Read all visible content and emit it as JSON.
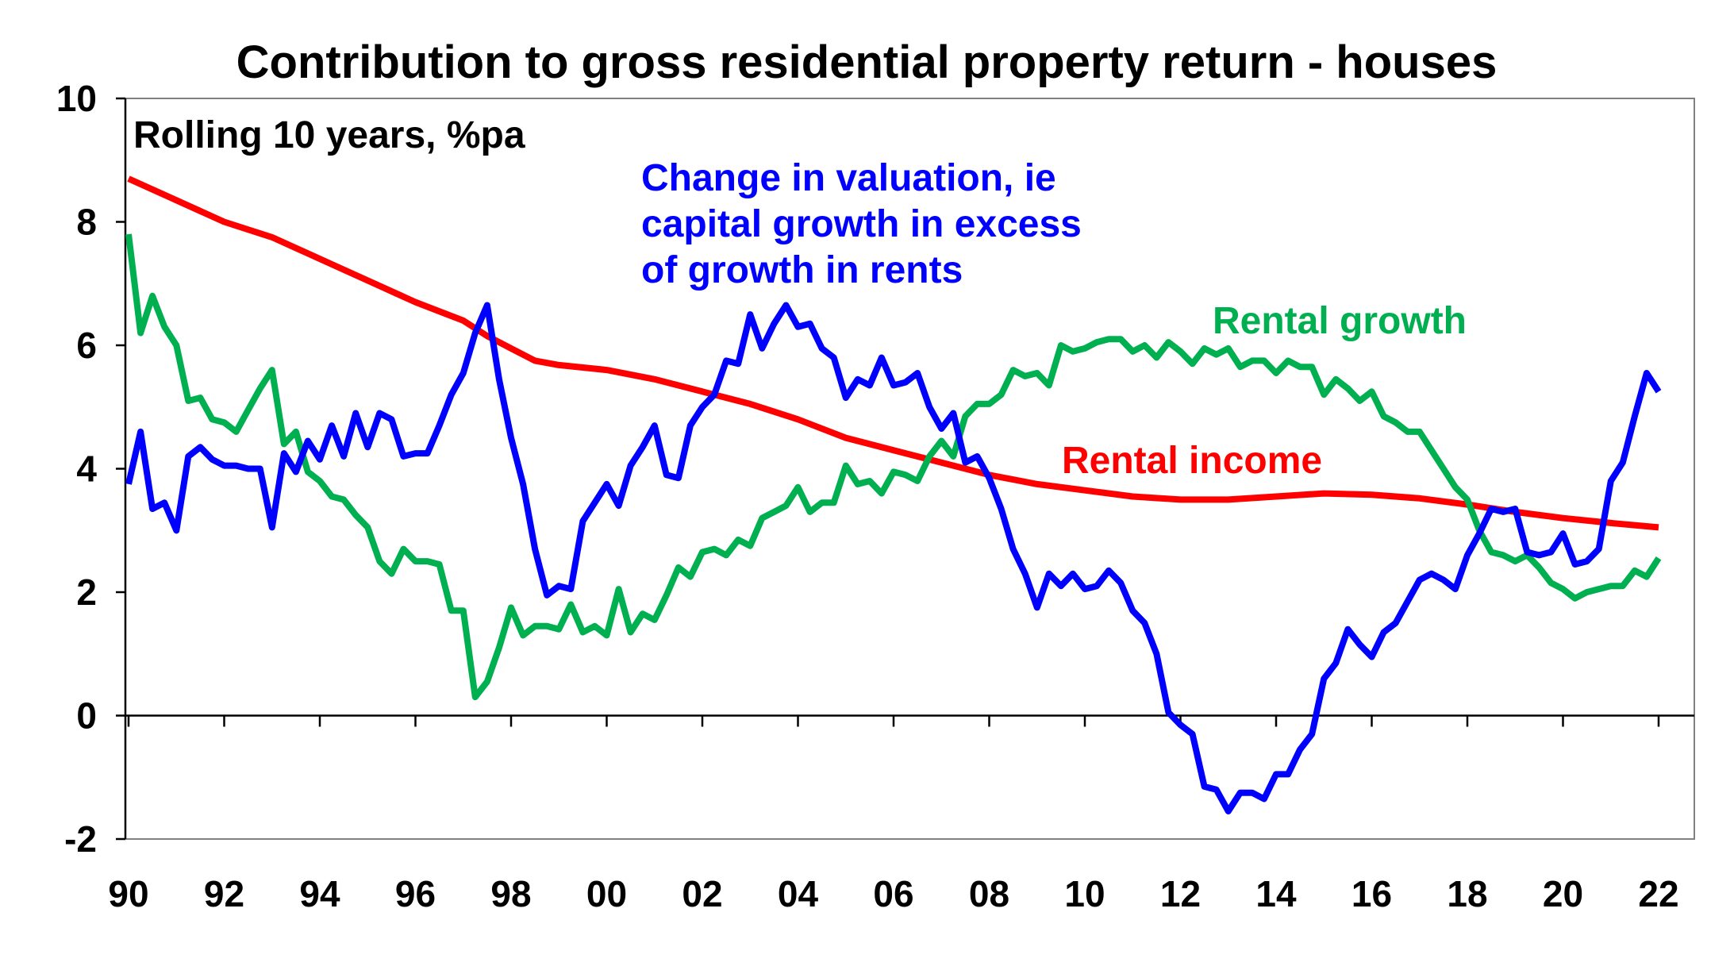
{
  "chart_data": {
    "type": "line",
    "title": "Contribution to gross residential property return - houses",
    "subtitle": "Rolling 10 years, %pa",
    "xlabel": "",
    "ylabel": "",
    "xlim": [
      1990,
      2022.3
    ],
    "ylim": [
      -2,
      10
    ],
    "y_ticks": [
      -2,
      0,
      2,
      4,
      6,
      8,
      10
    ],
    "x_ticks": [
      1990,
      1992,
      1994,
      1996,
      1998,
      2000,
      2002,
      2004,
      2006,
      2008,
      2010,
      2012,
      2014,
      2016,
      2018,
      2020,
      2022
    ],
    "x_tick_labels": [
      "90",
      "92",
      "94",
      "96",
      "98",
      "00",
      "02",
      "04",
      "06",
      "08",
      "10",
      "12",
      "14",
      "16",
      "18",
      "20",
      "22"
    ],
    "grid": false,
    "series": [
      {
        "name": "Rental income",
        "label": "Rental income",
        "color": "#ff0000",
        "points": [
          [
            1990,
            8.7
          ],
          [
            1991,
            8.35
          ],
          [
            1992,
            8.0
          ],
          [
            1993,
            7.75
          ],
          [
            1994,
            7.4
          ],
          [
            1995,
            7.05
          ],
          [
            1996,
            6.7
          ],
          [
            1997,
            6.4
          ],
          [
            1997.5,
            6.15
          ],
          [
            1998,
            5.95
          ],
          [
            1998.5,
            5.75
          ],
          [
            1999,
            5.68
          ],
          [
            2000,
            5.6
          ],
          [
            2001,
            5.45
          ],
          [
            2002,
            5.25
          ],
          [
            2003,
            5.05
          ],
          [
            2004,
            4.8
          ],
          [
            2005,
            4.5
          ],
          [
            2006,
            4.3
          ],
          [
            2007,
            4.1
          ],
          [
            2008,
            3.9
          ],
          [
            2009,
            3.75
          ],
          [
            2010,
            3.65
          ],
          [
            2011,
            3.55
          ],
          [
            2012,
            3.5
          ],
          [
            2013,
            3.5
          ],
          [
            2014,
            3.55
          ],
          [
            2015,
            3.6
          ],
          [
            2016,
            3.58
          ],
          [
            2017,
            3.52
          ],
          [
            2018,
            3.42
          ],
          [
            2019,
            3.3
          ],
          [
            2020,
            3.2
          ],
          [
            2021,
            3.12
          ],
          [
            2022,
            3.05
          ]
        ]
      },
      {
        "name": "Rental growth",
        "label": "Rental growth",
        "color": "#00b050",
        "points": [
          [
            1990,
            7.8
          ],
          [
            1990.25,
            6.2
          ],
          [
            1990.5,
            6.8
          ],
          [
            1990.75,
            6.3
          ],
          [
            1991,
            6.0
          ],
          [
            1991.25,
            5.1
          ],
          [
            1991.5,
            5.15
          ],
          [
            1991.75,
            4.8
          ],
          [
            1992,
            4.75
          ],
          [
            1992.25,
            4.6
          ],
          [
            1992.5,
            4.95
          ],
          [
            1992.75,
            5.3
          ],
          [
            1993,
            5.6
          ],
          [
            1993.25,
            4.4
          ],
          [
            1993.5,
            4.6
          ],
          [
            1993.75,
            3.95
          ],
          [
            1994,
            3.8
          ],
          [
            1994.25,
            3.55
          ],
          [
            1994.5,
            3.5
          ],
          [
            1994.75,
            3.25
          ],
          [
            1995,
            3.05
          ],
          [
            1995.25,
            2.5
          ],
          [
            1995.5,
            2.3
          ],
          [
            1995.75,
            2.7
          ],
          [
            1996,
            2.5
          ],
          [
            1996.25,
            2.5
          ],
          [
            1996.5,
            2.45
          ],
          [
            1996.75,
            1.7
          ],
          [
            1997,
            1.7
          ],
          [
            1997.25,
            0.3
          ],
          [
            1997.5,
            0.55
          ],
          [
            1997.75,
            1.1
          ],
          [
            1998,
            1.75
          ],
          [
            1998.25,
            1.3
          ],
          [
            1998.5,
            1.45
          ],
          [
            1998.75,
            1.45
          ],
          [
            1999,
            1.4
          ],
          [
            1999.25,
            1.8
          ],
          [
            1999.5,
            1.35
          ],
          [
            1999.75,
            1.45
          ],
          [
            2000,
            1.3
          ],
          [
            2000.25,
            2.05
          ],
          [
            2000.5,
            1.35
          ],
          [
            2000.75,
            1.65
          ],
          [
            2001,
            1.55
          ],
          [
            2001.25,
            1.95
          ],
          [
            2001.5,
            2.4
          ],
          [
            2001.75,
            2.25
          ],
          [
            2002,
            2.65
          ],
          [
            2002.25,
            2.7
          ],
          [
            2002.5,
            2.6
          ],
          [
            2002.75,
            2.85
          ],
          [
            2003,
            2.75
          ],
          [
            2003.25,
            3.2
          ],
          [
            2003.5,
            3.3
          ],
          [
            2003.75,
            3.4
          ],
          [
            2004,
            3.7
          ],
          [
            2004.25,
            3.3
          ],
          [
            2004.5,
            3.45
          ],
          [
            2004.75,
            3.45
          ],
          [
            2005,
            4.05
          ],
          [
            2005.25,
            3.75
          ],
          [
            2005.5,
            3.8
          ],
          [
            2005.75,
            3.6
          ],
          [
            2006,
            3.95
          ],
          [
            2006.25,
            3.9
          ],
          [
            2006.5,
            3.8
          ],
          [
            2006.75,
            4.2
          ],
          [
            2007,
            4.45
          ],
          [
            2007.25,
            4.2
          ],
          [
            2007.5,
            4.85
          ],
          [
            2007.75,
            5.05
          ],
          [
            2008,
            5.05
          ],
          [
            2008.25,
            5.2
          ],
          [
            2008.5,
            5.6
          ],
          [
            2008.75,
            5.5
          ],
          [
            2009,
            5.55
          ],
          [
            2009.25,
            5.35
          ],
          [
            2009.5,
            6.0
          ],
          [
            2009.75,
            5.9
          ],
          [
            2010,
            5.95
          ],
          [
            2010.25,
            6.05
          ],
          [
            2010.5,
            6.1
          ],
          [
            2010.75,
            6.1
          ],
          [
            2011,
            5.9
          ],
          [
            2011.25,
            6.0
          ],
          [
            2011.5,
            5.8
          ],
          [
            2011.75,
            6.05
          ],
          [
            2012,
            5.9
          ],
          [
            2012.25,
            5.7
          ],
          [
            2012.5,
            5.95
          ],
          [
            2012.75,
            5.85
          ],
          [
            2013,
            5.95
          ],
          [
            2013.25,
            5.65
          ],
          [
            2013.5,
            5.75
          ],
          [
            2013.75,
            5.75
          ],
          [
            2014,
            5.55
          ],
          [
            2014.25,
            5.75
          ],
          [
            2014.5,
            5.65
          ],
          [
            2014.75,
            5.65
          ],
          [
            2015,
            5.2
          ],
          [
            2015.25,
            5.45
          ],
          [
            2015.5,
            5.3
          ],
          [
            2015.75,
            5.1
          ],
          [
            2016,
            5.25
          ],
          [
            2016.25,
            4.85
          ],
          [
            2016.5,
            4.75
          ],
          [
            2016.75,
            4.6
          ],
          [
            2017,
            4.6
          ],
          [
            2017.25,
            4.3
          ],
          [
            2017.5,
            4.0
          ],
          [
            2017.75,
            3.7
          ],
          [
            2018,
            3.5
          ],
          [
            2018.25,
            3.0
          ],
          [
            2018.5,
            2.65
          ],
          [
            2018.75,
            2.6
          ],
          [
            2019,
            2.5
          ],
          [
            2019.25,
            2.6
          ],
          [
            2019.5,
            2.4
          ],
          [
            2019.75,
            2.15
          ],
          [
            2020,
            2.05
          ],
          [
            2020.25,
            1.9
          ],
          [
            2020.5,
            2.0
          ],
          [
            2020.75,
            2.05
          ],
          [
            2021,
            2.1
          ],
          [
            2021.25,
            2.1
          ],
          [
            2021.5,
            2.35
          ],
          [
            2021.75,
            2.25
          ],
          [
            2022,
            2.55
          ]
        ]
      },
      {
        "name": "Change in valuation",
        "label": [
          "Change in valuation, ie",
          "capital growth in excess",
          "of growth in rents"
        ],
        "color": "#0000ff",
        "points": [
          [
            1990,
            3.75
          ],
          [
            1990.25,
            4.6
          ],
          [
            1990.5,
            3.35
          ],
          [
            1990.75,
            3.45
          ],
          [
            1991,
            3.0
          ],
          [
            1991.25,
            4.2
          ],
          [
            1991.5,
            4.35
          ],
          [
            1991.75,
            4.15
          ],
          [
            1992,
            4.05
          ],
          [
            1992.25,
            4.05
          ],
          [
            1992.5,
            4.0
          ],
          [
            1992.75,
            4.0
          ],
          [
            1993,
            3.05
          ],
          [
            1993.25,
            4.25
          ],
          [
            1993.5,
            3.95
          ],
          [
            1993.75,
            4.45
          ],
          [
            1994,
            4.15
          ],
          [
            1994.25,
            4.7
          ],
          [
            1994.5,
            4.2
          ],
          [
            1994.75,
            4.9
          ],
          [
            1995,
            4.35
          ],
          [
            1995.25,
            4.9
          ],
          [
            1995.5,
            4.8
          ],
          [
            1995.75,
            4.2
          ],
          [
            1996,
            4.25
          ],
          [
            1996.25,
            4.25
          ],
          [
            1996.5,
            4.7
          ],
          [
            1996.75,
            5.2
          ],
          [
            1997,
            5.55
          ],
          [
            1997.25,
            6.2
          ],
          [
            1997.5,
            6.65
          ],
          [
            1997.75,
            5.45
          ],
          [
            1998,
            4.5
          ],
          [
            1998.25,
            3.75
          ],
          [
            1998.5,
            2.7
          ],
          [
            1998.75,
            1.95
          ],
          [
            1999,
            2.1
          ],
          [
            1999.25,
            2.05
          ],
          [
            1999.5,
            3.15
          ],
          [
            1999.75,
            3.45
          ],
          [
            2000,
            3.75
          ],
          [
            2000.25,
            3.4
          ],
          [
            2000.5,
            4.05
          ],
          [
            2000.75,
            4.35
          ],
          [
            2001,
            4.7
          ],
          [
            2001.25,
            3.9
          ],
          [
            2001.5,
            3.85
          ],
          [
            2001.75,
            4.7
          ],
          [
            2002,
            5.0
          ],
          [
            2002.25,
            5.2
          ],
          [
            2002.5,
            5.75
          ],
          [
            2002.75,
            5.7
          ],
          [
            2003,
            6.5
          ],
          [
            2003.25,
            5.95
          ],
          [
            2003.5,
            6.35
          ],
          [
            2003.75,
            6.65
          ],
          [
            2004,
            6.3
          ],
          [
            2004.25,
            6.35
          ],
          [
            2004.5,
            5.95
          ],
          [
            2004.75,
            5.8
          ],
          [
            2005,
            5.15
          ],
          [
            2005.25,
            5.45
          ],
          [
            2005.5,
            5.35
          ],
          [
            2005.75,
            5.8
          ],
          [
            2006,
            5.35
          ],
          [
            2006.25,
            5.4
          ],
          [
            2006.5,
            5.55
          ],
          [
            2006.75,
            5.0
          ],
          [
            2007,
            4.65
          ],
          [
            2007.25,
            4.9
          ],
          [
            2007.5,
            4.1
          ],
          [
            2007.75,
            4.2
          ],
          [
            2008,
            3.85
          ],
          [
            2008.25,
            3.35
          ],
          [
            2008.5,
            2.7
          ],
          [
            2008.75,
            2.3
          ],
          [
            2009,
            1.75
          ],
          [
            2009.25,
            2.3
          ],
          [
            2009.5,
            2.1
          ],
          [
            2009.75,
            2.3
          ],
          [
            2010,
            2.05
          ],
          [
            2010.25,
            2.1
          ],
          [
            2010.5,
            2.35
          ],
          [
            2010.75,
            2.15
          ],
          [
            2011,
            1.7
          ],
          [
            2011.25,
            1.5
          ],
          [
            2011.5,
            1.0
          ],
          [
            2011.75,
            0.05
          ],
          [
            2012,
            -0.15
          ],
          [
            2012.25,
            -0.3
          ],
          [
            2012.5,
            -1.15
          ],
          [
            2012.75,
            -1.2
          ],
          [
            2013,
            -1.55
          ],
          [
            2013.25,
            -1.25
          ],
          [
            2013.5,
            -1.25
          ],
          [
            2013.75,
            -1.35
          ],
          [
            2014,
            -0.95
          ],
          [
            2014.25,
            -0.95
          ],
          [
            2014.5,
            -0.55
          ],
          [
            2014.75,
            -0.3
          ],
          [
            2015,
            0.6
          ],
          [
            2015.25,
            0.85
          ],
          [
            2015.5,
            1.4
          ],
          [
            2015.75,
            1.15
          ],
          [
            2016,
            0.95
          ],
          [
            2016.25,
            1.35
          ],
          [
            2016.5,
            1.5
          ],
          [
            2016.75,
            1.85
          ],
          [
            2017,
            2.2
          ],
          [
            2017.25,
            2.3
          ],
          [
            2017.5,
            2.2
          ],
          [
            2017.75,
            2.05
          ],
          [
            2018,
            2.6
          ],
          [
            2018.25,
            2.95
          ],
          [
            2018.5,
            3.35
          ],
          [
            2018.75,
            3.3
          ],
          [
            2019,
            3.35
          ],
          [
            2019.25,
            2.65
          ],
          [
            2019.5,
            2.6
          ],
          [
            2019.75,
            2.65
          ],
          [
            2020,
            2.95
          ],
          [
            2020.25,
            2.45
          ],
          [
            2020.5,
            2.5
          ],
          [
            2020.75,
            2.7
          ],
          [
            2021,
            3.8
          ],
          [
            2021.25,
            4.1
          ],
          [
            2021.5,
            4.85
          ],
          [
            2021.75,
            5.55
          ],
          [
            2022,
            5.25
          ]
        ]
      }
    ]
  }
}
